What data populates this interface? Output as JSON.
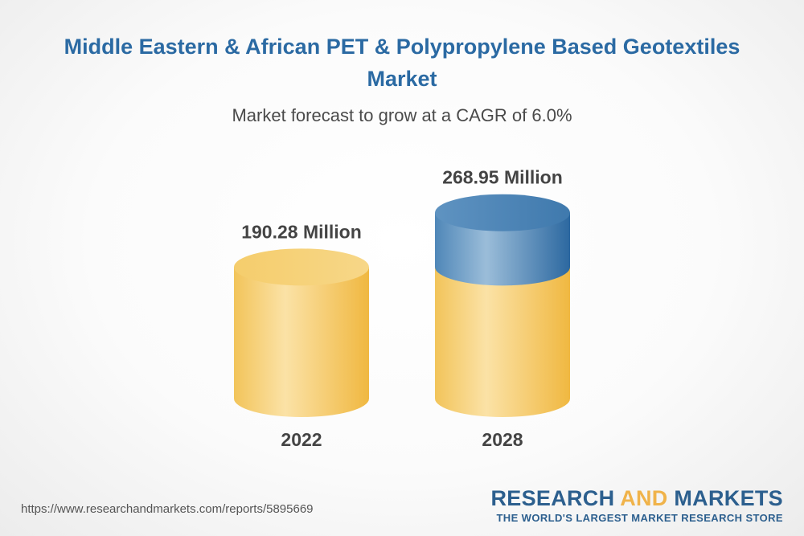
{
  "header": {
    "title": "Middle Eastern & African PET & Polypropylene Based Geotextiles Market",
    "subtitle": "Market forecast to grow at a CAGR of 6.0%"
  },
  "chart_data": {
    "type": "bar",
    "style": "3d-cylinder",
    "categories": [
      "2022",
      "2028"
    ],
    "values": [
      190.28,
      268.95
    ],
    "value_labels": [
      "190.28 Million",
      "268.95 Million"
    ],
    "colors": {
      "base": "#f2c45a",
      "growth": "#2f6fa6"
    },
    "title": "Middle Eastern & African PET & Polypropylene Based Geotextiles Market",
    "subtitle": "Market forecast to grow at a CAGR of 6.0%",
    "xlabel": "",
    "ylabel": ""
  },
  "footer": {
    "url": "https://www.researchandmarkets.com/reports/5895669",
    "logo_part1": "RESEARCH ",
    "logo_part2": "AND",
    "logo_part3": " MARKETS",
    "tagline": "THE WORLD'S LARGEST MARKET RESEARCH STORE"
  }
}
